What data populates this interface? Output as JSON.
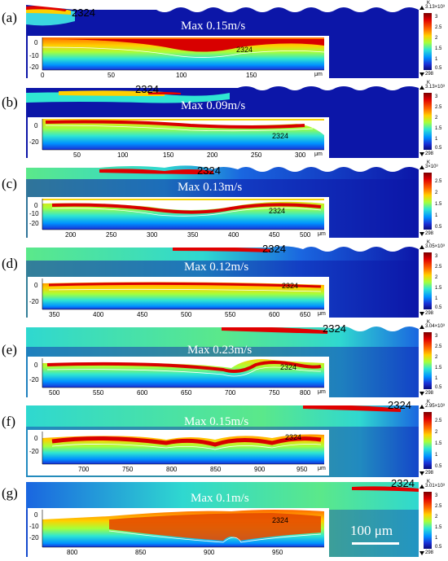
{
  "colorbar_gradient": [
    "#7a0000",
    "#e00000",
    "#ff6a00",
    "#ffd000",
    "#a6ff3a",
    "#2fe6d2",
    "#0090ff",
    "#1a2fd6",
    "#0a0a7a"
  ],
  "colorbar_ticks": [
    "3",
    "2.5",
    "2",
    "1.5",
    "1",
    "0.5"
  ],
  "colorbar_min": "298",
  "colorbar_unit": "K",
  "inset_unit": "μm",
  "contour_label": "2324",
  "scalebar_label": "100 μm",
  "panels": [
    {
      "label": "(a)",
      "max_velocity": "Max 0.15m/s",
      "colorbar_max": "3.13×10³",
      "colorbar_exp": "×10³",
      "x_ticks": [
        "0",
        "50",
        "100",
        "150"
      ],
      "y_ticks": [
        "0",
        "-10",
        "-20"
      ]
    },
    {
      "label": "(b)",
      "max_velocity": "Max 0.09m/s",
      "colorbar_max": "3.13×10³",
      "colorbar_exp": "×10³",
      "x_ticks": [
        "50",
        "100",
        "150",
        "200",
        "250",
        "300"
      ],
      "y_ticks": [
        "0",
        "-20"
      ]
    },
    {
      "label": "(c)",
      "max_velocity": "Max  0.13m/s",
      "colorbar_max": "3×10³",
      "colorbar_exp": "×10³",
      "x_ticks": [
        "200",
        "250",
        "300",
        "350",
        "400",
        "450",
        "500"
      ],
      "y_ticks": [
        "0",
        "-10",
        "-20"
      ]
    },
    {
      "label": "(d)",
      "max_velocity": "Max  0.12m/s",
      "colorbar_max": "3.05×10³",
      "colorbar_exp": "×10³",
      "x_ticks": [
        "350",
        "400",
        "450",
        "500",
        "550",
        "600",
        "650"
      ],
      "y_ticks": [
        "0",
        "-20"
      ]
    },
    {
      "label": "(e)",
      "max_velocity": "Max 0.23m/s",
      "colorbar_max": "3.04×10³",
      "colorbar_exp": "×10³",
      "x_ticks": [
        "500",
        "550",
        "600",
        "650",
        "700",
        "750",
        "800"
      ],
      "y_ticks": [
        "0",
        "-20"
      ]
    },
    {
      "label": "(f)",
      "max_velocity": "Max 0.15m/s",
      "colorbar_max": "2.95×10³",
      "colorbar_exp": "×10³",
      "x_ticks": [
        "700",
        "750",
        "800",
        "850",
        "900",
        "950"
      ],
      "y_ticks": [
        "0",
        "-20"
      ]
    },
    {
      "label": "(g)",
      "max_velocity": "Max 0.1m/s",
      "colorbar_max": "3.01×10³",
      "colorbar_exp": "×10³",
      "x_ticks": [
        "800",
        "850",
        "900",
        "950"
      ],
      "y_ticks": [
        "0",
        "-10",
        "-20"
      ]
    }
  ]
}
